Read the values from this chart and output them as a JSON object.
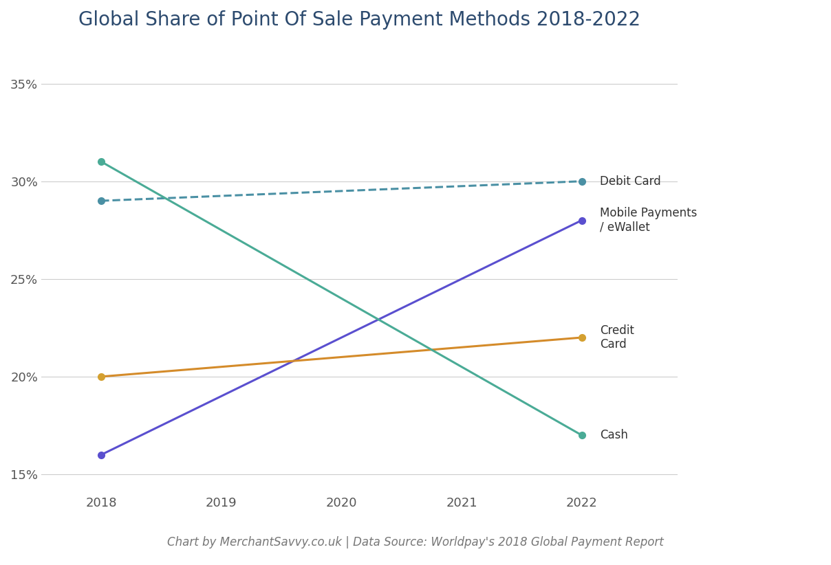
{
  "title": "Global Share of Point Of Sale Payment Methods 2018-2022",
  "subtitle": "Chart by MerchantSavvy.co.uk | Data Source: Worldpay's 2018 Global Payment Report",
  "years": [
    2018,
    2022
  ],
  "series": [
    {
      "label": "Debit Card",
      "values": [
        0.29,
        0.3
      ],
      "color": "#4a90a4",
      "linestyle": "--",
      "marker": "o",
      "marker_color": "#4a90a4"
    },
    {
      "label": "Mobile Payments\n/ eWallet",
      "values": [
        0.16,
        0.28
      ],
      "color": "#5a4fcf",
      "linestyle": "-",
      "marker": "o",
      "marker_color": "#5a4fcf"
    },
    {
      "label": "Credit\nCard",
      "values": [
        0.2,
        0.22
      ],
      "color": "#d48b2a",
      "linestyle": "-",
      "marker": "o",
      "marker_color": "#d4a030"
    },
    {
      "label": "Cash",
      "values": [
        0.31,
        0.17
      ],
      "color": "#4aab96",
      "linestyle": "-",
      "marker": "o",
      "marker_color": "#4aab96"
    }
  ],
  "xlim": [
    2017.5,
    2022.8
  ],
  "ylim": [
    0.14,
    0.37
  ],
  "yticks": [
    0.15,
    0.2,
    0.25,
    0.3,
    0.35
  ],
  "xticks": [
    2018,
    2019,
    2020,
    2021,
    2022
  ],
  "background_color": "#ffffff",
  "grid_color": "#cccccc",
  "title_color": "#2c4a6e",
  "title_fontsize": 20,
  "axis_label_fontsize": 13,
  "tick_fontsize": 13,
  "annotation_fontsize": 12,
  "subtitle_fontsize": 12,
  "subtitle_color": "#777777"
}
